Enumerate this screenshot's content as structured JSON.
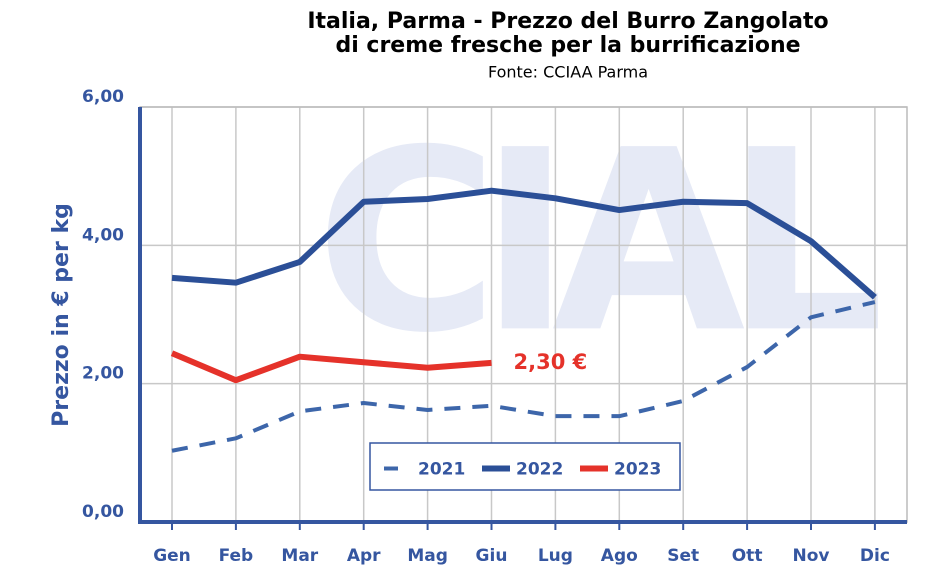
{
  "chart_data": {
    "type": "line",
    "title": [
      "Italia, Parma - Prezzo del Burro Zangolato",
      "di creme fresche per la burrificazione"
    ],
    "subtitle": "Fonte: CCIAA Parma",
    "watermark": "CIAL",
    "ylabel": "Prezzo in € per kg",
    "categories": [
      "Gen",
      "Feb",
      "Mar",
      "Apr",
      "Mag",
      "Giu",
      "Lug",
      "Ago",
      "Set",
      "Ott",
      "Nov",
      "Dic"
    ],
    "series": [
      {
        "name": "2021",
        "color": "#3d66aa",
        "dashed": true,
        "values": [
          1.03,
          1.21,
          1.6,
          1.72,
          1.62,
          1.68,
          1.53,
          1.53,
          1.75,
          2.24,
          2.96,
          3.18
        ]
      },
      {
        "name": "2022",
        "color": "#2b4f97",
        "dashed": false,
        "values": [
          3.53,
          3.46,
          3.76,
          4.63,
          4.67,
          4.79,
          4.68,
          4.51,
          4.63,
          4.61,
          4.06,
          3.25
        ]
      },
      {
        "name": "2023",
        "color": "#e5322a",
        "dashed": false,
        "values": [
          2.44,
          2.05,
          2.39,
          2.31,
          2.23,
          2.3,
          null,
          null,
          null,
          null,
          null,
          null
        ],
        "value_labels": [
          null,
          null,
          null,
          null,
          null,
          "2,30 €",
          null,
          null,
          null,
          null,
          null,
          null
        ]
      }
    ],
    "ylim": [
      0,
      6
    ],
    "yticks": [
      {
        "value": 0,
        "label": "0,00"
      },
      {
        "value": 2,
        "label": "2,00"
      },
      {
        "value": 4,
        "label": "4,00"
      },
      {
        "value": 6,
        "label": "6,00"
      }
    ],
    "grid": true,
    "legend": "bottom"
  }
}
